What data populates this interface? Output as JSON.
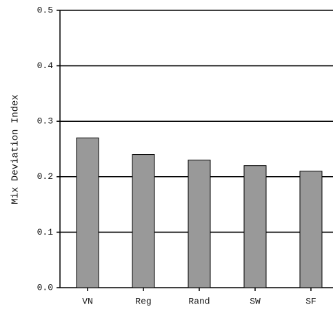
{
  "chart_data": {
    "type": "bar",
    "y_label": "Mix Deviation Index",
    "categories": [
      "VN",
      "Reg",
      "Rand",
      "SW",
      "SF"
    ],
    "values": [
      0.27,
      0.24,
      0.23,
      0.22,
      0.21
    ],
    "color": "#999999",
    "ylim": [
      0,
      0.5
    ],
    "yticks": [
      {
        "value": 0,
        "label": "0.0"
      },
      0.1,
      0.2,
      0.3,
      0.4,
      0.5
    ],
    "grid": true
  }
}
